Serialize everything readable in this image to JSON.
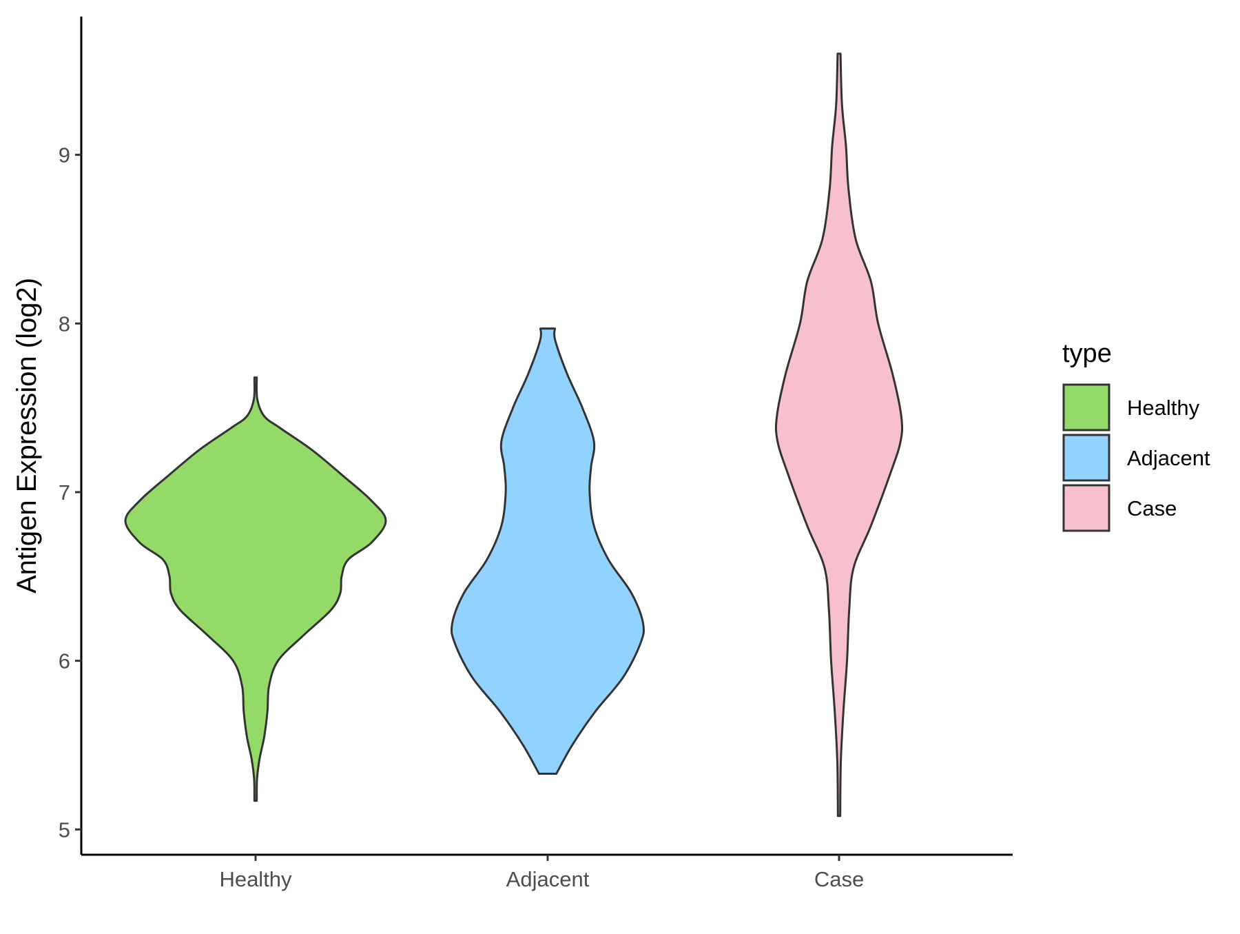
{
  "chart_data": {
    "type": "violin",
    "title": "",
    "xlabel": "",
    "ylabel": "Antigen Expression (log2)",
    "ylim": [
      4.85,
      9.82
    ],
    "yticks": [
      5,
      6,
      7,
      8,
      9
    ],
    "grid": false,
    "legend_position": "right",
    "legend_title": "type",
    "categories": [
      "Healthy",
      "Adjacent",
      "Case"
    ],
    "series": [
      {
        "name": "Healthy",
        "color": "#93DA68",
        "profile": [
          [
            5.17,
            0.008
          ],
          [
            5.3,
            0.01
          ],
          [
            5.42,
            0.028
          ],
          [
            5.55,
            0.06
          ],
          [
            5.7,
            0.082
          ],
          [
            5.85,
            0.093
          ],
          [
            6.0,
            0.155
          ],
          [
            6.15,
            0.33
          ],
          [
            6.3,
            0.52
          ],
          [
            6.4,
            0.585
          ],
          [
            6.5,
            0.595
          ],
          [
            6.6,
            0.64
          ],
          [
            6.7,
            0.8
          ],
          [
            6.83,
            0.9
          ],
          [
            6.95,
            0.8
          ],
          [
            7.1,
            0.6
          ],
          [
            7.25,
            0.39
          ],
          [
            7.38,
            0.17
          ],
          [
            7.45,
            0.06
          ],
          [
            7.55,
            0.012
          ],
          [
            7.68,
            0.008
          ]
        ]
      },
      {
        "name": "Adjacent",
        "color": "#92D2FF",
        "profile": [
          [
            5.33,
            0.06
          ],
          [
            5.5,
            0.17
          ],
          [
            5.7,
            0.33
          ],
          [
            5.9,
            0.52
          ],
          [
            6.1,
            0.64
          ],
          [
            6.22,
            0.66
          ],
          [
            6.4,
            0.58
          ],
          [
            6.6,
            0.42
          ],
          [
            6.8,
            0.32
          ],
          [
            7.0,
            0.29
          ],
          [
            7.15,
            0.3
          ],
          [
            7.3,
            0.32
          ],
          [
            7.5,
            0.24
          ],
          [
            7.7,
            0.135
          ],
          [
            7.9,
            0.052
          ],
          [
            7.97,
            0.05
          ]
        ]
      },
      {
        "name": "Case",
        "color": "#F7C0CC",
        "profile": [
          [
            5.08,
            0.008
          ],
          [
            5.4,
            0.012
          ],
          [
            5.7,
            0.03
          ],
          [
            6.0,
            0.055
          ],
          [
            6.3,
            0.07
          ],
          [
            6.55,
            0.1
          ],
          [
            6.8,
            0.22
          ],
          [
            7.1,
            0.35
          ],
          [
            7.3,
            0.425
          ],
          [
            7.45,
            0.43
          ],
          [
            7.7,
            0.37
          ],
          [
            8.0,
            0.27
          ],
          [
            8.25,
            0.22
          ],
          [
            8.5,
            0.115
          ],
          [
            8.8,
            0.065
          ],
          [
            9.05,
            0.048
          ],
          [
            9.3,
            0.02
          ],
          [
            9.6,
            0.01
          ]
        ]
      }
    ]
  }
}
